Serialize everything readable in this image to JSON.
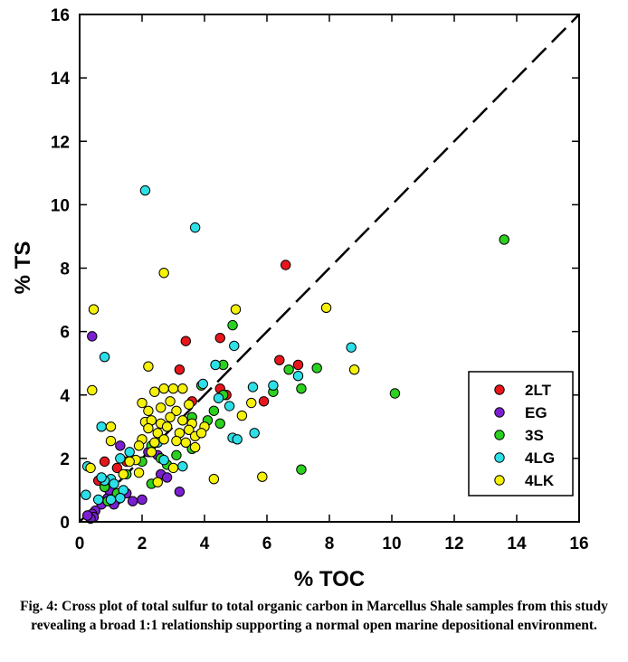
{
  "chart_data": {
    "type": "scatter",
    "xlabel": "% TOC",
    "ylabel": "% TS",
    "xlim": [
      0,
      16
    ],
    "ylim": [
      0,
      16
    ],
    "xticks": [
      "0",
      "2",
      "4",
      "6",
      "8",
      "10",
      "12",
      "14",
      "16"
    ],
    "yticks": [
      "0",
      "2",
      "4",
      "6",
      "8",
      "10",
      "12",
      "14",
      "16"
    ],
    "legend_position": "lower-right",
    "reference_line": {
      "label": "1:1",
      "from": [
        0,
        0
      ],
      "to": [
        16,
        16
      ],
      "style": "dashed"
    },
    "series": [
      {
        "name": "2LT",
        "color": "#e8161b",
        "points": [
          [
            6.6,
            8.1
          ],
          [
            4.5,
            5.8
          ],
          [
            3.4,
            5.7
          ],
          [
            6.4,
            5.1
          ],
          [
            7.0,
            4.95
          ],
          [
            3.2,
            4.8
          ],
          [
            4.5,
            4.2
          ],
          [
            4.7,
            4.0
          ],
          [
            5.9,
            3.8
          ],
          [
            3.6,
            3.8
          ],
          [
            0.8,
            1.9
          ],
          [
            1.5,
            1.9
          ],
          [
            1.2,
            1.7
          ],
          [
            0.6,
            1.3
          ]
        ]
      },
      {
        "name": "EG",
        "color": "#7b1fd1",
        "points": [
          [
            0.4,
            5.85
          ],
          [
            1.3,
            2.4
          ],
          [
            2.2,
            2.2
          ],
          [
            2.5,
            2.1
          ],
          [
            1.0,
            1.25
          ],
          [
            2.6,
            1.5
          ],
          [
            2.8,
            1.4
          ],
          [
            3.2,
            0.95
          ],
          [
            1.5,
            0.9
          ],
          [
            1.1,
            0.8
          ],
          [
            0.9,
            0.75
          ],
          [
            1.2,
            0.7
          ],
          [
            1.7,
            0.65
          ],
          [
            2.0,
            0.7
          ],
          [
            1.1,
            0.55
          ],
          [
            0.7,
            0.55
          ],
          [
            0.95,
            1.0
          ],
          [
            0.5,
            0.35
          ],
          [
            0.4,
            0.25
          ],
          [
            0.45,
            0.15
          ],
          [
            0.35,
            0.1
          ],
          [
            0.25,
            0.2
          ]
        ]
      },
      {
        "name": "3S",
        "color": "#2bd11f",
        "points": [
          [
            13.6,
            8.9
          ],
          [
            4.9,
            6.2
          ],
          [
            4.6,
            4.95
          ],
          [
            7.6,
            4.85
          ],
          [
            6.7,
            4.8
          ],
          [
            7.1,
            4.2
          ],
          [
            10.1,
            4.05
          ],
          [
            6.2,
            4.1
          ],
          [
            3.9,
            4.3
          ],
          [
            4.6,
            4.0
          ],
          [
            4.3,
            3.5
          ],
          [
            4.1,
            3.2
          ],
          [
            3.6,
            3.3
          ],
          [
            4.5,
            3.1
          ],
          [
            3.6,
            2.3
          ],
          [
            3.1,
            2.1
          ],
          [
            2.3,
            2.4
          ],
          [
            2.6,
            2.0
          ],
          [
            2.8,
            1.8
          ],
          [
            2.0,
            1.9
          ],
          [
            1.5,
            1.5
          ],
          [
            2.3,
            1.2
          ],
          [
            7.1,
            1.65
          ],
          [
            0.8,
            1.1
          ],
          [
            1.2,
            0.9
          ],
          [
            0.9,
            0.65
          ]
        ]
      },
      {
        "name": "4LG",
        "color": "#2de0e8",
        "points": [
          [
            2.1,
            10.45
          ],
          [
            3.7,
            9.28
          ],
          [
            4.95,
            5.55
          ],
          [
            8.7,
            5.5
          ],
          [
            0.8,
            5.2
          ],
          [
            4.35,
            4.95
          ],
          [
            7.0,
            4.6
          ],
          [
            6.2,
            4.3
          ],
          [
            5.55,
            4.25
          ],
          [
            3.95,
            4.35
          ],
          [
            4.45,
            3.9
          ],
          [
            4.8,
            3.65
          ],
          [
            5.6,
            2.8
          ],
          [
            4.9,
            2.65
          ],
          [
            5.05,
            2.6
          ],
          [
            0.7,
            3.0
          ],
          [
            1.6,
            2.2
          ],
          [
            1.3,
            2.0
          ],
          [
            2.5,
            2.5
          ],
          [
            2.7,
            1.95
          ],
          [
            3.3,
            1.75
          ],
          [
            1.0,
            1.35
          ],
          [
            0.8,
            1.3
          ],
          [
            1.1,
            1.2
          ],
          [
            0.7,
            1.4
          ],
          [
            1.4,
            1.0
          ],
          [
            0.2,
            0.85
          ],
          [
            1.3,
            0.75
          ],
          [
            1.0,
            0.7
          ],
          [
            0.6,
            0.7
          ],
          [
            0.25,
            1.75
          ]
        ]
      },
      {
        "name": "4LK",
        "color": "#f5f10a",
        "points": [
          [
            2.7,
            7.85
          ],
          [
            7.9,
            6.75
          ],
          [
            0.45,
            6.7
          ],
          [
            5.0,
            6.7
          ],
          [
            2.2,
            4.9
          ],
          [
            8.8,
            4.8
          ],
          [
            0.4,
            4.15
          ],
          [
            2.4,
            4.1
          ],
          [
            2.7,
            4.2
          ],
          [
            3.0,
            4.2
          ],
          [
            3.3,
            4.2
          ],
          [
            2.0,
            3.75
          ],
          [
            3.5,
            3.7
          ],
          [
            2.9,
            3.8
          ],
          [
            2.2,
            3.5
          ],
          [
            2.6,
            3.6
          ],
          [
            5.5,
            3.75
          ],
          [
            3.1,
            3.5
          ],
          [
            5.2,
            3.35
          ],
          [
            2.1,
            3.15
          ],
          [
            2.3,
            3.2
          ],
          [
            2.6,
            3.1
          ],
          [
            2.9,
            3.3
          ],
          [
            3.3,
            3.2
          ],
          [
            3.6,
            3.1
          ],
          [
            4.0,
            3.0
          ],
          [
            2.2,
            2.95
          ],
          [
            2.5,
            2.8
          ],
          [
            2.8,
            3.0
          ],
          [
            3.2,
            2.8
          ],
          [
            3.5,
            2.9
          ],
          [
            3.7,
            2.7
          ],
          [
            3.9,
            2.8
          ],
          [
            2.0,
            2.6
          ],
          [
            2.4,
            2.5
          ],
          [
            2.7,
            2.6
          ],
          [
            3.1,
            2.55
          ],
          [
            3.4,
            2.5
          ],
          [
            3.7,
            2.35
          ],
          [
            1.9,
            2.4
          ],
          [
            1.0,
            3.0
          ],
          [
            1.0,
            2.55
          ],
          [
            1.8,
            1.95
          ],
          [
            2.3,
            2.2
          ],
          [
            3.0,
            1.7
          ],
          [
            1.6,
            1.9
          ],
          [
            2.5,
            1.25
          ],
          [
            4.3,
            1.35
          ],
          [
            5.85,
            1.42
          ],
          [
            1.4,
            1.5
          ],
          [
            1.9,
            1.55
          ],
          [
            0.35,
            1.7
          ]
        ]
      }
    ]
  },
  "caption": "Fig. 4: Cross plot of total sulfur to total organic carbon in Marcellus Shale samples from this study revealing a broad 1:1 relationship supporting a normal open marine depositional environment."
}
